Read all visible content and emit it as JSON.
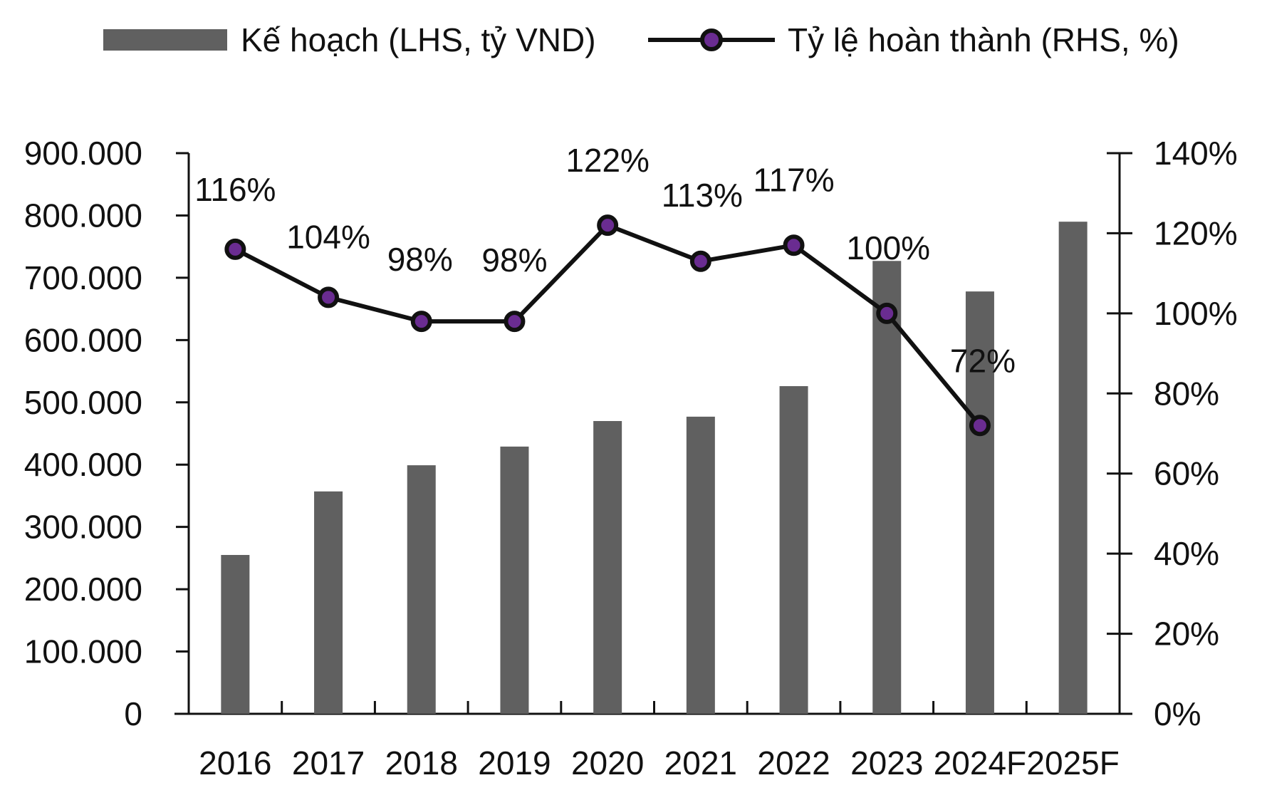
{
  "chart_data": {
    "type": "bar",
    "categories": [
      "2016",
      "2017",
      "2018",
      "2019",
      "2020",
      "2021",
      "2022",
      "2023",
      "2024F",
      "2025F"
    ],
    "series": [
      {
        "name": "Kế hoạch (LHS, tỷ VND)",
        "type": "bar",
        "axis": "left",
        "values": [
          255000,
          357000,
          399000,
          429000,
          470000,
          477000,
          526000,
          727000,
          678000,
          790000
        ],
        "color": "#606060"
      },
      {
        "name": "Tỷ lệ hoàn thành (RHS, %)",
        "type": "line",
        "axis": "right",
        "values": [
          116,
          104,
          98,
          98,
          122,
          113,
          117,
          100,
          72,
          null
        ],
        "data_labels": [
          "116%",
          "104%",
          "98%",
          "98%",
          "122%",
          "113%",
          "117%",
          "100%",
          "72%",
          ""
        ],
        "color": "#111111",
        "marker_color": "#6a2c91"
      }
    ],
    "left_axis": {
      "ylim": [
        0,
        900000
      ],
      "ticks": [
        "0",
        "100.000",
        "200.000",
        "300.000",
        "400.000",
        "500.000",
        "600.000",
        "700.000",
        "800.000",
        "900.000"
      ]
    },
    "right_axis": {
      "ylim": [
        0,
        140
      ],
      "ticks": [
        "0%",
        "20%",
        "40%",
        "60%",
        "80%",
        "100%",
        "120%",
        "140%"
      ]
    },
    "legend_position": "top",
    "grid": false
  }
}
